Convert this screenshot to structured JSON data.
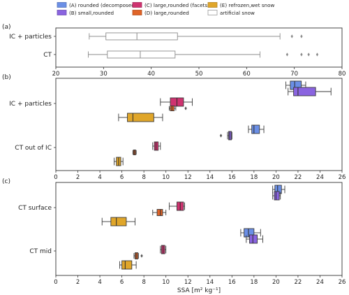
{
  "legend": [
    {
      "label": "(A) rounded (decomposed)",
      "color": "#6b8fe6"
    },
    {
      "label": "(B) small,rounded",
      "color": "#8a64e0"
    },
    {
      "label": "(C) large,rounded (facets)",
      "color": "#cf3370"
    },
    {
      "label": "(D) large,rounded",
      "color": "#e06428"
    },
    {
      "label": "(E) refrozen,wet snow",
      "color": "#e0a62a"
    },
    {
      "label": "artificial snow",
      "color": "#ffffff"
    }
  ],
  "xlabel": "SSA [m² kg⁻¹]",
  "chart_data": [
    {
      "type": "box",
      "panel": "(a)",
      "xlim": [
        20,
        80
      ],
      "xticks": [
        20,
        30,
        40,
        50,
        60,
        70,
        80
      ],
      "categories": [
        "IC + particles",
        "CT"
      ],
      "series": [
        {
          "name": "artificial snow",
          "boxes": [
            {
              "category": "IC + particles",
              "whislo": 27,
              "q1": 30.5,
              "med": 37,
              "q3": 45.5,
              "whishi": 67,
              "fliers": [
                69.5,
                71.5
              ]
            },
            {
              "category": "CT",
              "whislo": 26.8,
              "q1": 30.8,
              "med": 37.7,
              "q3": 45,
              "whishi": 62.8,
              "fliers": [
                68.5,
                71.5,
                73,
                74.8
              ]
            }
          ]
        }
      ]
    },
    {
      "type": "box",
      "panel": "(b)",
      "xlim": [
        0,
        26
      ],
      "xticks": [
        0,
        2,
        4,
        6,
        8,
        10,
        12,
        14,
        16,
        18,
        20,
        22,
        24,
        26
      ],
      "categories": [
        "IC + particles",
        "CT out of IC"
      ],
      "series": [
        {
          "name": "(A) rounded (decomposed)",
          "boxes": [
            {
              "category": "IC + particles",
              "whislo": 20.9,
              "q1": 21.3,
              "med": 21.7,
              "q3": 22.3,
              "whishi": 22.7,
              "fliers": []
            },
            {
              "category": "CT out of IC",
              "whislo": 17.5,
              "q1": 17.8,
              "med": 18.0,
              "q3": 18.5,
              "whishi": 18.9,
              "fliers": []
            }
          ]
        },
        {
          "name": "(B) small,rounded",
          "boxes": [
            {
              "category": "IC + particles",
              "whislo": 21.1,
              "q1": 21.6,
              "med": 22.0,
              "q3": 23.6,
              "whishi": 25.0,
              "fliers": []
            },
            {
              "category": "CT out of IC",
              "whislo": 15.6,
              "q1": 15.7,
              "med": 15.8,
              "q3": 15.95,
              "whishi": 16.0,
              "fliers": [
                15.0
              ]
            }
          ]
        },
        {
          "name": "(C) large,rounded (facets)",
          "boxes": [
            {
              "category": "IC + particles",
              "whislo": 9.5,
              "q1": 10.4,
              "med": 11.0,
              "q3": 11.6,
              "whishi": 12.4,
              "fliers": []
            },
            {
              "category": "CT out of IC",
              "whislo": 8.8,
              "q1": 8.95,
              "med": 9.1,
              "q3": 9.3,
              "whishi": 9.5,
              "fliers": []
            }
          ]
        },
        {
          "name": "(D) large,rounded",
          "boxes": [
            {
              "category": "IC + particles",
              "whislo": 10.3,
              "q1": 10.4,
              "med": 10.55,
              "q3": 10.75,
              "whishi": 10.9,
              "fliers": [
                11.8
              ]
            },
            {
              "category": "CT out of IC",
              "whislo": 7.0,
              "q1": 7.05,
              "med": 7.15,
              "q3": 7.25,
              "whishi": 7.3,
              "fliers": []
            }
          ]
        },
        {
          "name": "(E) refrozen,wet snow",
          "boxes": [
            {
              "category": "IC + particles",
              "whislo": 5.7,
              "q1": 6.5,
              "med": 7.0,
              "q3": 8.9,
              "whishi": 9.7,
              "fliers": []
            },
            {
              "category": "CT out of IC",
              "whislo": 5.3,
              "q1": 5.5,
              "med": 5.7,
              "q3": 5.9,
              "whishi": 6.1,
              "fliers": []
            }
          ]
        }
      ]
    },
    {
      "type": "box",
      "panel": "(c)",
      "xlim": [
        0,
        26
      ],
      "xticks": [
        0,
        2,
        4,
        6,
        8,
        10,
        12,
        14,
        16,
        18,
        20,
        22,
        24,
        26
      ],
      "categories": [
        "CT surface",
        "CT mid"
      ],
      "series": [
        {
          "name": "(A) rounded (decomposed)",
          "boxes": [
            {
              "category": "CT surface",
              "whislo": 19.7,
              "q1": 19.9,
              "med": 20.15,
              "q3": 20.5,
              "whishi": 20.8,
              "fliers": []
            },
            {
              "category": "CT mid",
              "whislo": 16.8,
              "q1": 17.1,
              "med": 17.5,
              "q3": 18.0,
              "whishi": 18.6,
              "fliers": []
            }
          ]
        },
        {
          "name": "(B) small,rounded",
          "boxes": [
            {
              "category": "CT surface",
              "whislo": 19.7,
              "q1": 19.85,
              "med": 20.0,
              "q3": 20.3,
              "whishi": 20.4,
              "fliers": []
            },
            {
              "category": "CT mid",
              "whislo": 17.3,
              "q1": 17.6,
              "med": 17.9,
              "q3": 18.3,
              "whishi": 18.8,
              "fliers": []
            }
          ]
        },
        {
          "name": "(C) large,rounded (facets)",
          "boxes": [
            {
              "category": "CT surface",
              "whislo": 10.3,
              "q1": 11.0,
              "med": 11.3,
              "q3": 11.6,
              "whishi": 11.7,
              "fliers": []
            },
            {
              "category": "CT mid",
              "whislo": 9.5,
              "q1": 9.6,
              "med": 9.75,
              "q3": 9.9,
              "whishi": 10.0,
              "fliers": []
            }
          ]
        },
        {
          "name": "(D) large,rounded",
          "boxes": [
            {
              "category": "CT surface",
              "whislo": 8.8,
              "q1": 9.2,
              "med": 9.5,
              "q3": 9.7,
              "whishi": 10.0,
              "fliers": []
            },
            {
              "category": "CT mid",
              "whislo": 7.1,
              "q1": 7.2,
              "med": 7.3,
              "q3": 7.45,
              "whishi": 7.5,
              "fliers": [
                7.8
              ]
            }
          ]
        },
        {
          "name": "(E) refrozen,wet snow",
          "boxes": [
            {
              "category": "CT surface",
              "whislo": 4.2,
              "q1": 5.0,
              "med": 5.5,
              "q3": 6.4,
              "whishi": 7.2,
              "fliers": []
            },
            {
              "category": "CT mid",
              "whislo": 5.8,
              "q1": 6.0,
              "med": 6.3,
              "q3": 6.9,
              "whishi": 7.3,
              "fliers": []
            }
          ]
        }
      ]
    }
  ]
}
